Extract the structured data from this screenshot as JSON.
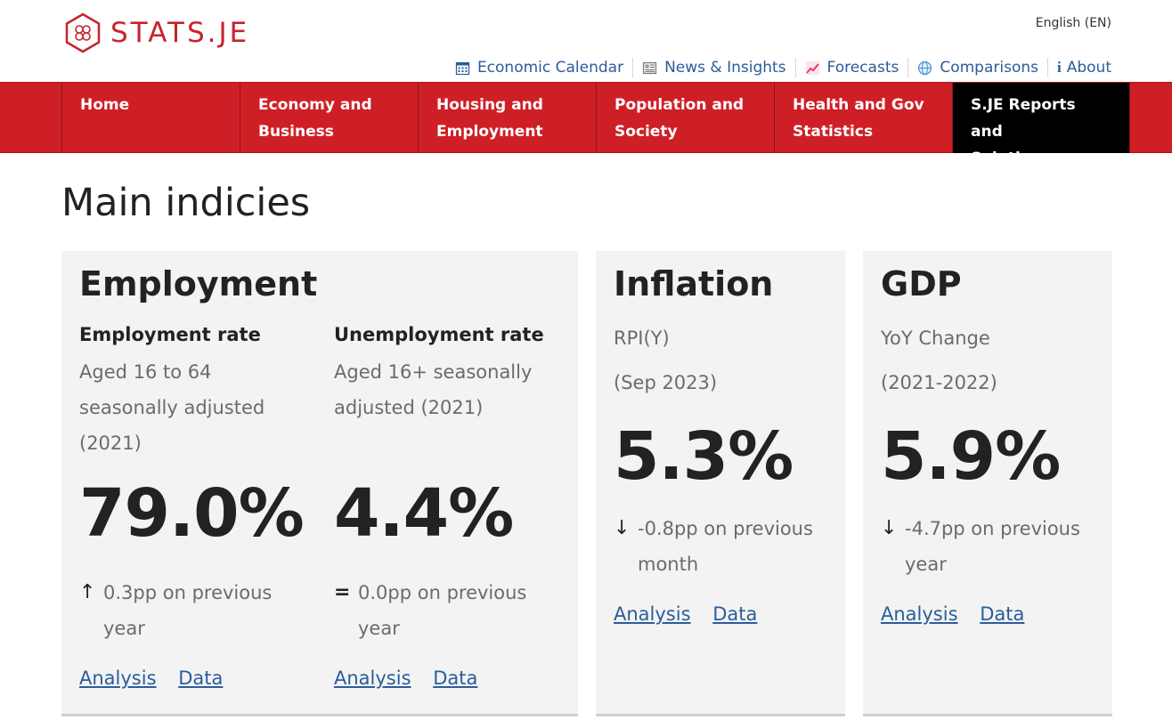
{
  "brand": {
    "logo_text": "STATS.JE",
    "logo_color": "#c8232c"
  },
  "language": "English (EN)",
  "utility_nav": [
    {
      "label": "Economic Calendar",
      "icon": "calendar-icon"
    },
    {
      "label": "News & Insights",
      "icon": "newspaper-icon"
    },
    {
      "label": "Forecasts",
      "icon": "trend-chart-icon"
    },
    {
      "label": "Comparisons",
      "icon": "globe-icon"
    },
    {
      "label": "About",
      "icon": "info-icon"
    }
  ],
  "main_nav": [
    {
      "line1": "Home",
      "line2": ""
    },
    {
      "line1": "Economy and",
      "line2": "Business"
    },
    {
      "line1": "Housing and",
      "line2": "Employment"
    },
    {
      "line1": "Population and",
      "line2": "Society"
    },
    {
      "line1": "Health and Gov",
      "line2": "Statistics"
    },
    {
      "line1": "S.JE Reports and",
      "line2": "Solutions",
      "active": true
    }
  ],
  "colors": {
    "nav_red": "#cf1f26",
    "link_blue": "#2a5d9a",
    "card_bg": "#f3f3f3"
  },
  "page_title": "Main indicies",
  "cards": {
    "employment": {
      "title": "Employment",
      "employment_rate": {
        "label": "Employment rate",
        "meta_line1": "Aged 16 to 64",
        "meta_line2": "seasonally adjusted",
        "meta_line3": "(2021)",
        "value": "79.0%",
        "change_icon": "↑",
        "change_line1": "0.3pp on previous",
        "change_line2": "year",
        "analysis_link": "Analysis",
        "data_link": "Data"
      },
      "unemployment_rate": {
        "label": "Unemployment rate",
        "meta_line1": "Aged 16+ seasonally",
        "meta_line2": "adjusted (2021)",
        "value": "4.4%",
        "change_icon": "=",
        "change_line1": "0.0pp on previous",
        "change_line2": "year",
        "analysis_link": "Analysis",
        "data_link": "Data"
      }
    },
    "inflation": {
      "title": "Inflation",
      "meta_line1": "RPI(Y)",
      "meta_line2": "(Sep 2023)",
      "value": "5.3%",
      "change_icon": "↓",
      "change_line1": "-0.8pp on previous",
      "change_line2": "month",
      "analysis_link": "Analysis",
      "data_link": "Data"
    },
    "gdp": {
      "title": "GDP",
      "meta_line1": "YoY Change",
      "meta_line2": "(2021-2022)",
      "value": "5.9%",
      "change_icon": "↓",
      "change_line1": "-4.7pp on previous",
      "change_line2": "year",
      "analysis_link": "Analysis",
      "data_link": "Data"
    }
  }
}
